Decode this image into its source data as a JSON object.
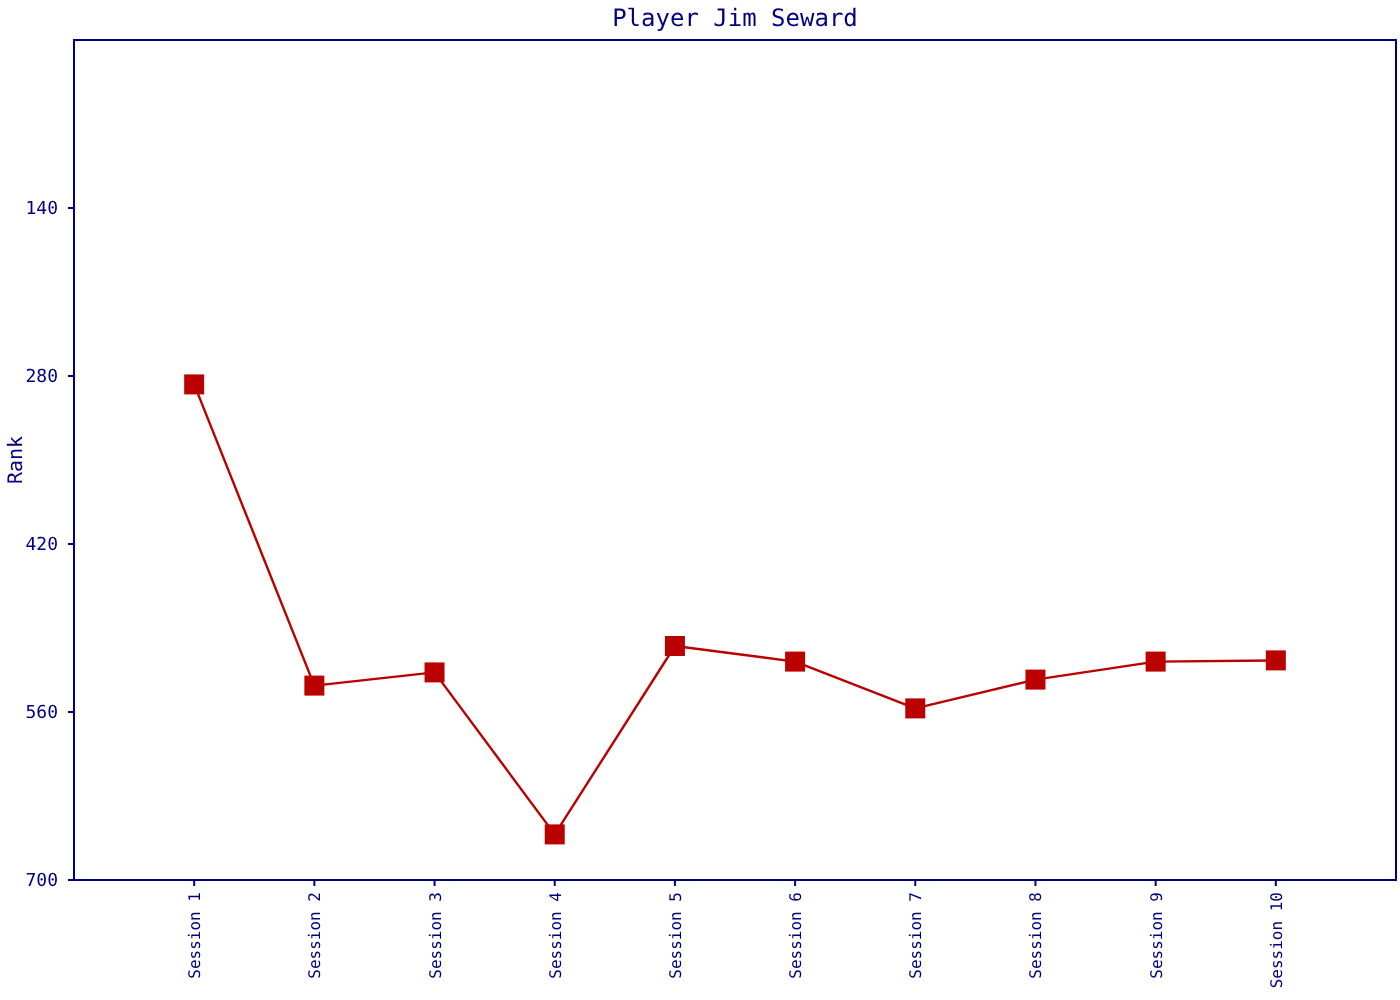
{
  "chart_data": {
    "type": "line",
    "title": "Player Jim Seward",
    "ylabel": "Rank",
    "categories": [
      "Session 1",
      "Session 2",
      "Session 3",
      "Session 4",
      "Session 5",
      "Session 6",
      "Session 7",
      "Session 8",
      "Session 9",
      "Session 10"
    ],
    "series": [
      {
        "color": "#bb0000",
        "values": [
          287,
          538,
          527,
          662,
          505,
          518,
          557,
          533,
          518,
          517
        ]
      }
    ],
    "ylim": [
      700,
      0
    ],
    "yticks": [
      140,
      280,
      420,
      560,
      700
    ],
    "grid": false,
    "marker": "square",
    "line_style": "solid"
  }
}
